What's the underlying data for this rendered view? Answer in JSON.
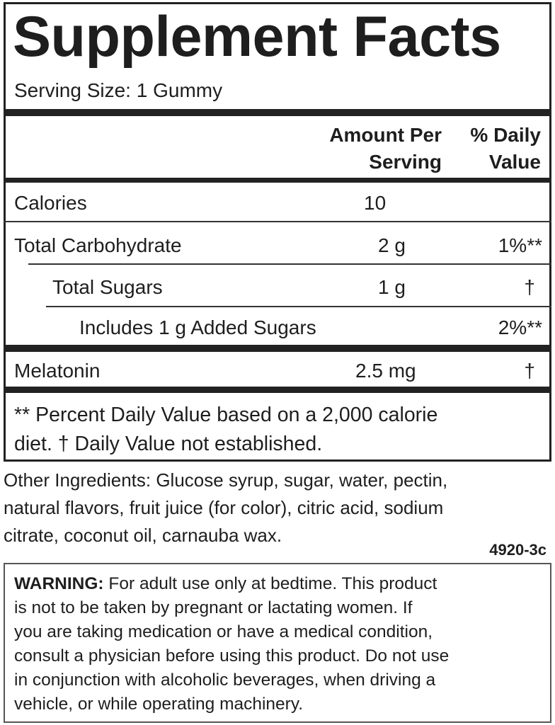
{
  "title": "Supplement Facts",
  "serving_size": "Serving Size: 1 Gummy",
  "columns": {
    "amount_line1": "Amount Per",
    "amount_line2": "Serving",
    "dv_line1": "% Daily",
    "dv_line2": "Value"
  },
  "rows": [
    {
      "name": "Calories",
      "amount": "10",
      "dv": ""
    },
    {
      "name": "Total Carbohydrate",
      "amount": "2 g",
      "dv": "1%**"
    },
    {
      "name": "Total Sugars",
      "amount": "1 g",
      "dv": "†"
    },
    {
      "name": "Includes 1 g Added Sugars",
      "amount": "",
      "dv": "2%**"
    },
    {
      "name": "Melatonin",
      "amount": "2.5 mg",
      "dv": "†"
    }
  ],
  "footnote": {
    "line1": "** Percent Daily Value based on a 2,000 calorie",
    "line2": "diet. † Daily Value not established."
  },
  "ingredients": {
    "line1": "Other Ingredients: Glucose syrup, sugar, water, pectin,",
    "line2": "natural flavors, fruit juice (for color), citric acid, sodium",
    "line3": "citrate, coconut oil, carnauba wax."
  },
  "code": "4920-3c",
  "warning": {
    "label": "WARNING:",
    "line1": " For adult use only at bedtime. This product",
    "line2": "is not to be taken by pregnant or lactating women. If",
    "line3": "you are taking medication or have a medical condition,",
    "line4": "consult a physician before using this product. Do not use",
    "line5": "in conjunction with alcoholic beverages, when driving a",
    "line6": "vehicle, or while operating machinery."
  }
}
